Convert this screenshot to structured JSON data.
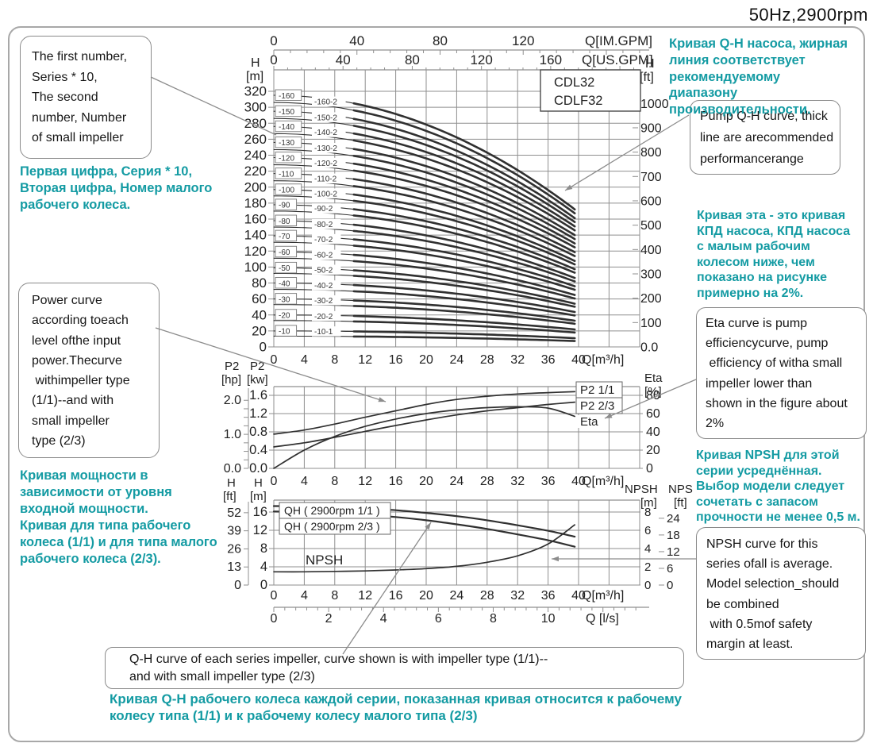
{
  "header": {
    "title": "50Hz,2900rpm"
  },
  "model_box": {
    "models": [
      "CDL32",
      "CDLF32"
    ]
  },
  "callouts": {
    "impeller_numbering": {
      "lines": [
        "The first number,",
        "Series * 10,",
        "The second",
        "number, Number",
        "of small impeller"
      ]
    },
    "power_curve": {
      "lines": [
        "Power curve",
        "according toeach",
        "level ofthe input",
        "power.Thecurve",
        " withimpeller type",
        "(1/1)--and with",
        "small impeller",
        "type (2/3)"
      ]
    },
    "pump_qh": {
      "lines": [
        "Pump Q-H curve, thick",
        "line are arecommended",
        "performancerange"
      ]
    },
    "eta_curve": {
      "lines": [
        "Eta curve is pump",
        "efficiencycurve, pump",
        " efficiency of witha small",
        "impeller lower than",
        "shown in the figure about",
        "2%"
      ]
    },
    "npsh_curve": {
      "lines": [
        "NPSH curve for this",
        "series ofall is average.",
        "Model selection_should",
        "be combined",
        " with 0.5mof safety",
        "margin at least."
      ]
    },
    "qh_series": {
      "lines": [
        "Q-H curve of each series impeller, curve shown is with impeller type (1/1)--",
        "and with small impeller type (2/3)"
      ]
    }
  },
  "notes_ru": {
    "qh_main": {
      "lines": [
        "Кривая Q-H насоса, жирная",
        "линия соответствует",
        "рекомендуемому диапазону",
        "производительности."
      ]
    },
    "eta": {
      "lines": [
        "Кривая эта - это кривая",
        "КПД насоса, КПД насоса",
        "с малым рабочим",
        "колесом ниже, чем",
        "показано на рисунке",
        "примерно на 2%."
      ]
    },
    "npsh": {
      "lines": [
        "Кривая NPSH для этой",
        "серии усреднённая.",
        "Выбор модели следует",
        "сочетать с запасом",
        "прочности не менее 0,5 м."
      ]
    },
    "numbering": {
      "lines": [
        "Первая цифра, Серия * 10,",
        "Вторая цифра, Номер малого",
        "рабочего колеса."
      ]
    },
    "power": {
      "lines": [
        "Кривая мощности в",
        "зависимости от уровня",
        "входной мощности.",
        "Кривая для типа рабочего",
        "колеса (1/1) и для типа малого",
        "рабочего колеса (2/3)."
      ]
    },
    "qh_bottom": {
      "lines": [
        "Кривая Q-H рабочего колеса каждой серии, показанная кривая относится к рабочему",
        "колесу типа (1/1) и к рабочему колесу малого типа (2/3)"
      ]
    }
  },
  "colors": {
    "teal": "#149ba3",
    "curve": "#303030",
    "grid": "#8f8f8f",
    "leader": "#8c8c8c",
    "text": "#222222"
  },
  "chart_data": [
    {
      "type": "line",
      "id": "qh-main",
      "title": "Pump Q-H curves per impeller count",
      "x_axes": [
        {
          "label": "Q[IM.GPM]",
          "ticks": [
            "0",
            "40",
            "80",
            "120"
          ]
        },
        {
          "label": "Q[US.GPM]",
          "ticks": [
            "0",
            "40",
            "80",
            "120",
            "160"
          ]
        },
        {
          "label": "Q[m³/h]",
          "ticks": [
            "0",
            "4",
            "8",
            "12",
            "16",
            "20",
            "24",
            "28",
            "32",
            "36",
            "40"
          ]
        }
      ],
      "y_axes": [
        {
          "name_lines": [
            "H",
            "[m]"
          ],
          "ticks": [
            "0",
            "20",
            "40",
            "60",
            "80",
            "100",
            "120",
            "140",
            "160",
            "180",
            "200",
            "220",
            "240",
            "260",
            "280",
            "300",
            "320"
          ]
        },
        {
          "name_lines": [
            "H",
            "[ft]"
          ],
          "ticks": [
            "0.0",
            "100",
            "200",
            "300",
            "400",
            "500",
            "600",
            "700",
            "800",
            "900",
            "1000"
          ]
        }
      ],
      "xlim_m3h": [
        0,
        40
      ],
      "ylim_m": [
        0,
        320
      ],
      "q_end": 39.5,
      "droop": 0.465,
      "thick_from_q": 10,
      "curves": [
        {
          "label": "-160",
          "h0_m": 315
        },
        {
          "label": "-160-2",
          "h0_m": 306
        },
        {
          "label": "-150",
          "h0_m": 295
        },
        {
          "label": "-150-2",
          "h0_m": 286
        },
        {
          "label": "-140",
          "h0_m": 276
        },
        {
          "label": "-140-2",
          "h0_m": 267
        },
        {
          "label": "-130",
          "h0_m": 256
        },
        {
          "label": "-130-2",
          "h0_m": 247
        },
        {
          "label": "-120",
          "h0_m": 237
        },
        {
          "label": "-120-2",
          "h0_m": 228
        },
        {
          "label": "-110",
          "h0_m": 217
        },
        {
          "label": "-110-2",
          "h0_m": 208
        },
        {
          "label": "-100",
          "h0_m": 197
        },
        {
          "label": "-100-2",
          "h0_m": 189
        },
        {
          "label": "-90",
          "h0_m": 178
        },
        {
          "label": "-90-2",
          "h0_m": 170
        },
        {
          "label": "-80",
          "h0_m": 158
        },
        {
          "label": "-80-2",
          "h0_m": 150
        },
        {
          "label": "-70",
          "h0_m": 139
        },
        {
          "label": "-70-2",
          "h0_m": 131
        },
        {
          "label": "-60",
          "h0_m": 119
        },
        {
          "label": "-60-2",
          "h0_m": 111
        },
        {
          "label": "-50",
          "h0_m": 99
        },
        {
          "label": "-50-2",
          "h0_m": 92
        },
        {
          "label": "-40",
          "h0_m": 80
        },
        {
          "label": "-40-2",
          "h0_m": 72
        },
        {
          "label": "-30",
          "h0_m": 60
        },
        {
          "label": "-30-2",
          "h0_m": 53
        },
        {
          "label": "-20",
          "h0_m": 40
        },
        {
          "label": "-20-2",
          "h0_m": 33
        },
        {
          "label": "-10",
          "h0_m": 20
        },
        {
          "label": "-10-1",
          "h0_m": 13.5
        }
      ]
    },
    {
      "type": "line",
      "id": "power-eta",
      "title": "Input power P2 and efficiency Eta",
      "x_axis": {
        "label": "Q[m³/h]",
        "ticks": [
          "0",
          "4",
          "8",
          "12",
          "16",
          "20",
          "24",
          "28",
          "32",
          "36",
          "40"
        ]
      },
      "y_axes": [
        {
          "name_lines": [
            "P2",
            "[hp]"
          ],
          "ticks": [
            "0.0",
            "1.0",
            "2.0"
          ]
        },
        {
          "name_lines": [
            "P2",
            "[kw]"
          ],
          "ticks": [
            "0.0",
            "0.4",
            "0.8",
            "1.2",
            "1.6"
          ]
        },
        {
          "name_lines": [
            "Eta",
            "[%]"
          ],
          "ticks": [
            "0",
            "20",
            "40",
            "60",
            "80"
          ]
        }
      ],
      "series": [
        {
          "name": "P2 1/1",
          "axis": "kw",
          "x": [
            0,
            4,
            8,
            12,
            16,
            20,
            24,
            28,
            32,
            36,
            39.5
          ],
          "y": [
            0.75,
            0.84,
            0.97,
            1.12,
            1.26,
            1.4,
            1.51,
            1.58,
            1.63,
            1.66,
            1.68
          ]
        },
        {
          "name": "P2 2/3",
          "axis": "kw",
          "x": [
            0,
            4,
            8,
            12,
            16,
            20,
            24,
            28,
            32,
            36,
            39.5
          ],
          "y": [
            0.47,
            0.56,
            0.68,
            0.81,
            0.94,
            1.06,
            1.17,
            1.26,
            1.33,
            1.4,
            1.45
          ]
        },
        {
          "name": "Eta",
          "axis": "eta",
          "x": [
            0,
            4,
            8,
            12,
            16,
            20,
            24,
            28,
            32,
            36,
            39.5
          ],
          "y": [
            0,
            20,
            35,
            46,
            54,
            60,
            64,
            66.5,
            67.5,
            66,
            57
          ]
        }
      ]
    },
    {
      "type": "line",
      "id": "qh-npsh",
      "title": "Single impeller Q-H and NPSH",
      "x_axes": [
        {
          "label": "Q[m³/h]",
          "ticks": [
            "0",
            "4",
            "8",
            "12",
            "16",
            "20",
            "24",
            "28",
            "32",
            "36",
            "40"
          ]
        },
        {
          "label": "Q [l/s]",
          "ticks": [
            "0",
            "2",
            "4",
            "6",
            "8",
            "10"
          ]
        }
      ],
      "y_axes": [
        {
          "name_lines": [
            "H",
            "[ft]"
          ],
          "ticks": [
            "0",
            "13",
            "26",
            "39",
            "52"
          ]
        },
        {
          "name_lines": [
            "H",
            "[m]"
          ],
          "ticks": [
            "0",
            "4",
            "8",
            "12",
            "16"
          ]
        },
        {
          "name_lines": [
            "NPSH",
            "[m]"
          ],
          "ticks": [
            "0",
            "2",
            "4",
            "6",
            "8"
          ]
        },
        {
          "name_lines": [
            "NPS",
            "[ft]"
          ],
          "ticks": [
            "0",
            "6",
            "12",
            "18",
            "24"
          ]
        }
      ],
      "annotation": "NPSH",
      "series": [
        {
          "name": "QH ( 2900rpm 1/1 )",
          "axis": "m",
          "x": [
            0,
            4,
            8,
            12,
            16,
            20,
            24,
            28,
            32,
            36,
            39.5
          ],
          "y": [
            17.3,
            17.25,
            17.1,
            16.8,
            16.4,
            15.8,
            15.1,
            14.2,
            13.1,
            11.9,
            10.6
          ]
        },
        {
          "name": "QH ( 2900rpm 2/3 )",
          "axis": "m",
          "x": [
            0,
            4,
            8,
            12,
            16,
            20,
            24,
            28,
            32,
            36,
            39.5
          ],
          "y": [
            16.1,
            16.0,
            15.8,
            15.4,
            14.9,
            14.2,
            13.3,
            12.3,
            11.1,
            9.8,
            8.4
          ]
        },
        {
          "name": "NPSH",
          "axis": "npsh",
          "x": [
            0,
            4,
            8,
            12,
            16,
            20,
            24,
            28,
            32,
            36,
            39.5
          ],
          "y": [
            1.45,
            1.45,
            1.5,
            1.55,
            1.65,
            1.8,
            2.05,
            2.5,
            3.2,
            4.5,
            6.6
          ]
        }
      ]
    }
  ]
}
